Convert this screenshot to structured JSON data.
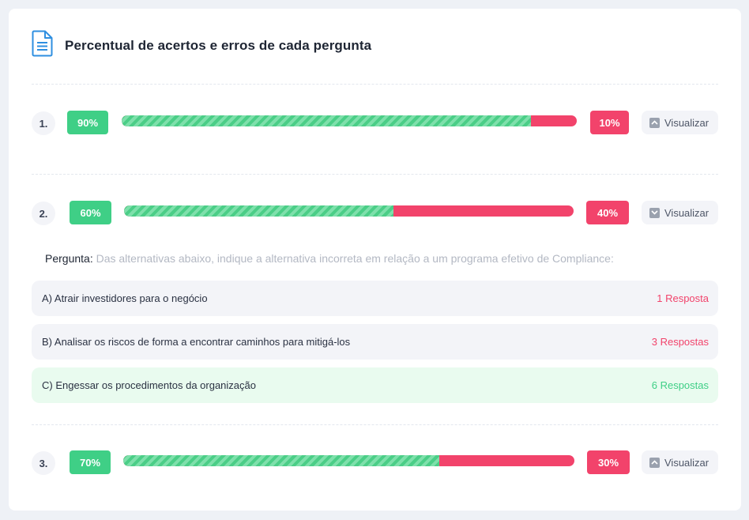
{
  "header": {
    "title": "Percentual de acertos e erros de cada pergunta",
    "icon": "document-icon",
    "icon_color": "#2f8fe0"
  },
  "colors": {
    "correct": "#3fcf86",
    "wrong": "#f2436b",
    "correct_bg": "#e9fbef"
  },
  "questions": [
    {
      "number": "1.",
      "correct_pct": 90,
      "correct_label": "90%",
      "wrong_label": "10%",
      "view_label": "Visualizar",
      "expanded": false
    },
    {
      "number": "2.",
      "correct_pct": 60,
      "correct_label": "60%",
      "wrong_label": "40%",
      "view_label": "Visualizar",
      "expanded": true
    },
    {
      "number": "3.",
      "correct_pct": 70,
      "correct_label": "70%",
      "wrong_label": "30%",
      "view_label": "Visualizar",
      "expanded": false
    }
  ],
  "detail": {
    "question_label": "Pergunta:",
    "question_text": " Das alternativas abaixo, indique a alternativa incorreta em relação a um programa efetivo de Compliance:",
    "answers": [
      {
        "text": "A) Atrair investidores para o negócio",
        "count": "1 Resposta",
        "correct": false
      },
      {
        "text": "B) Analisar os riscos de forma a encontrar caminhos para mitigá-los",
        "count": "3 Respostas",
        "correct": false
      },
      {
        "text": "C) Engessar os procedimentos da organização",
        "count": "6 Respostas",
        "correct": true
      }
    ]
  }
}
